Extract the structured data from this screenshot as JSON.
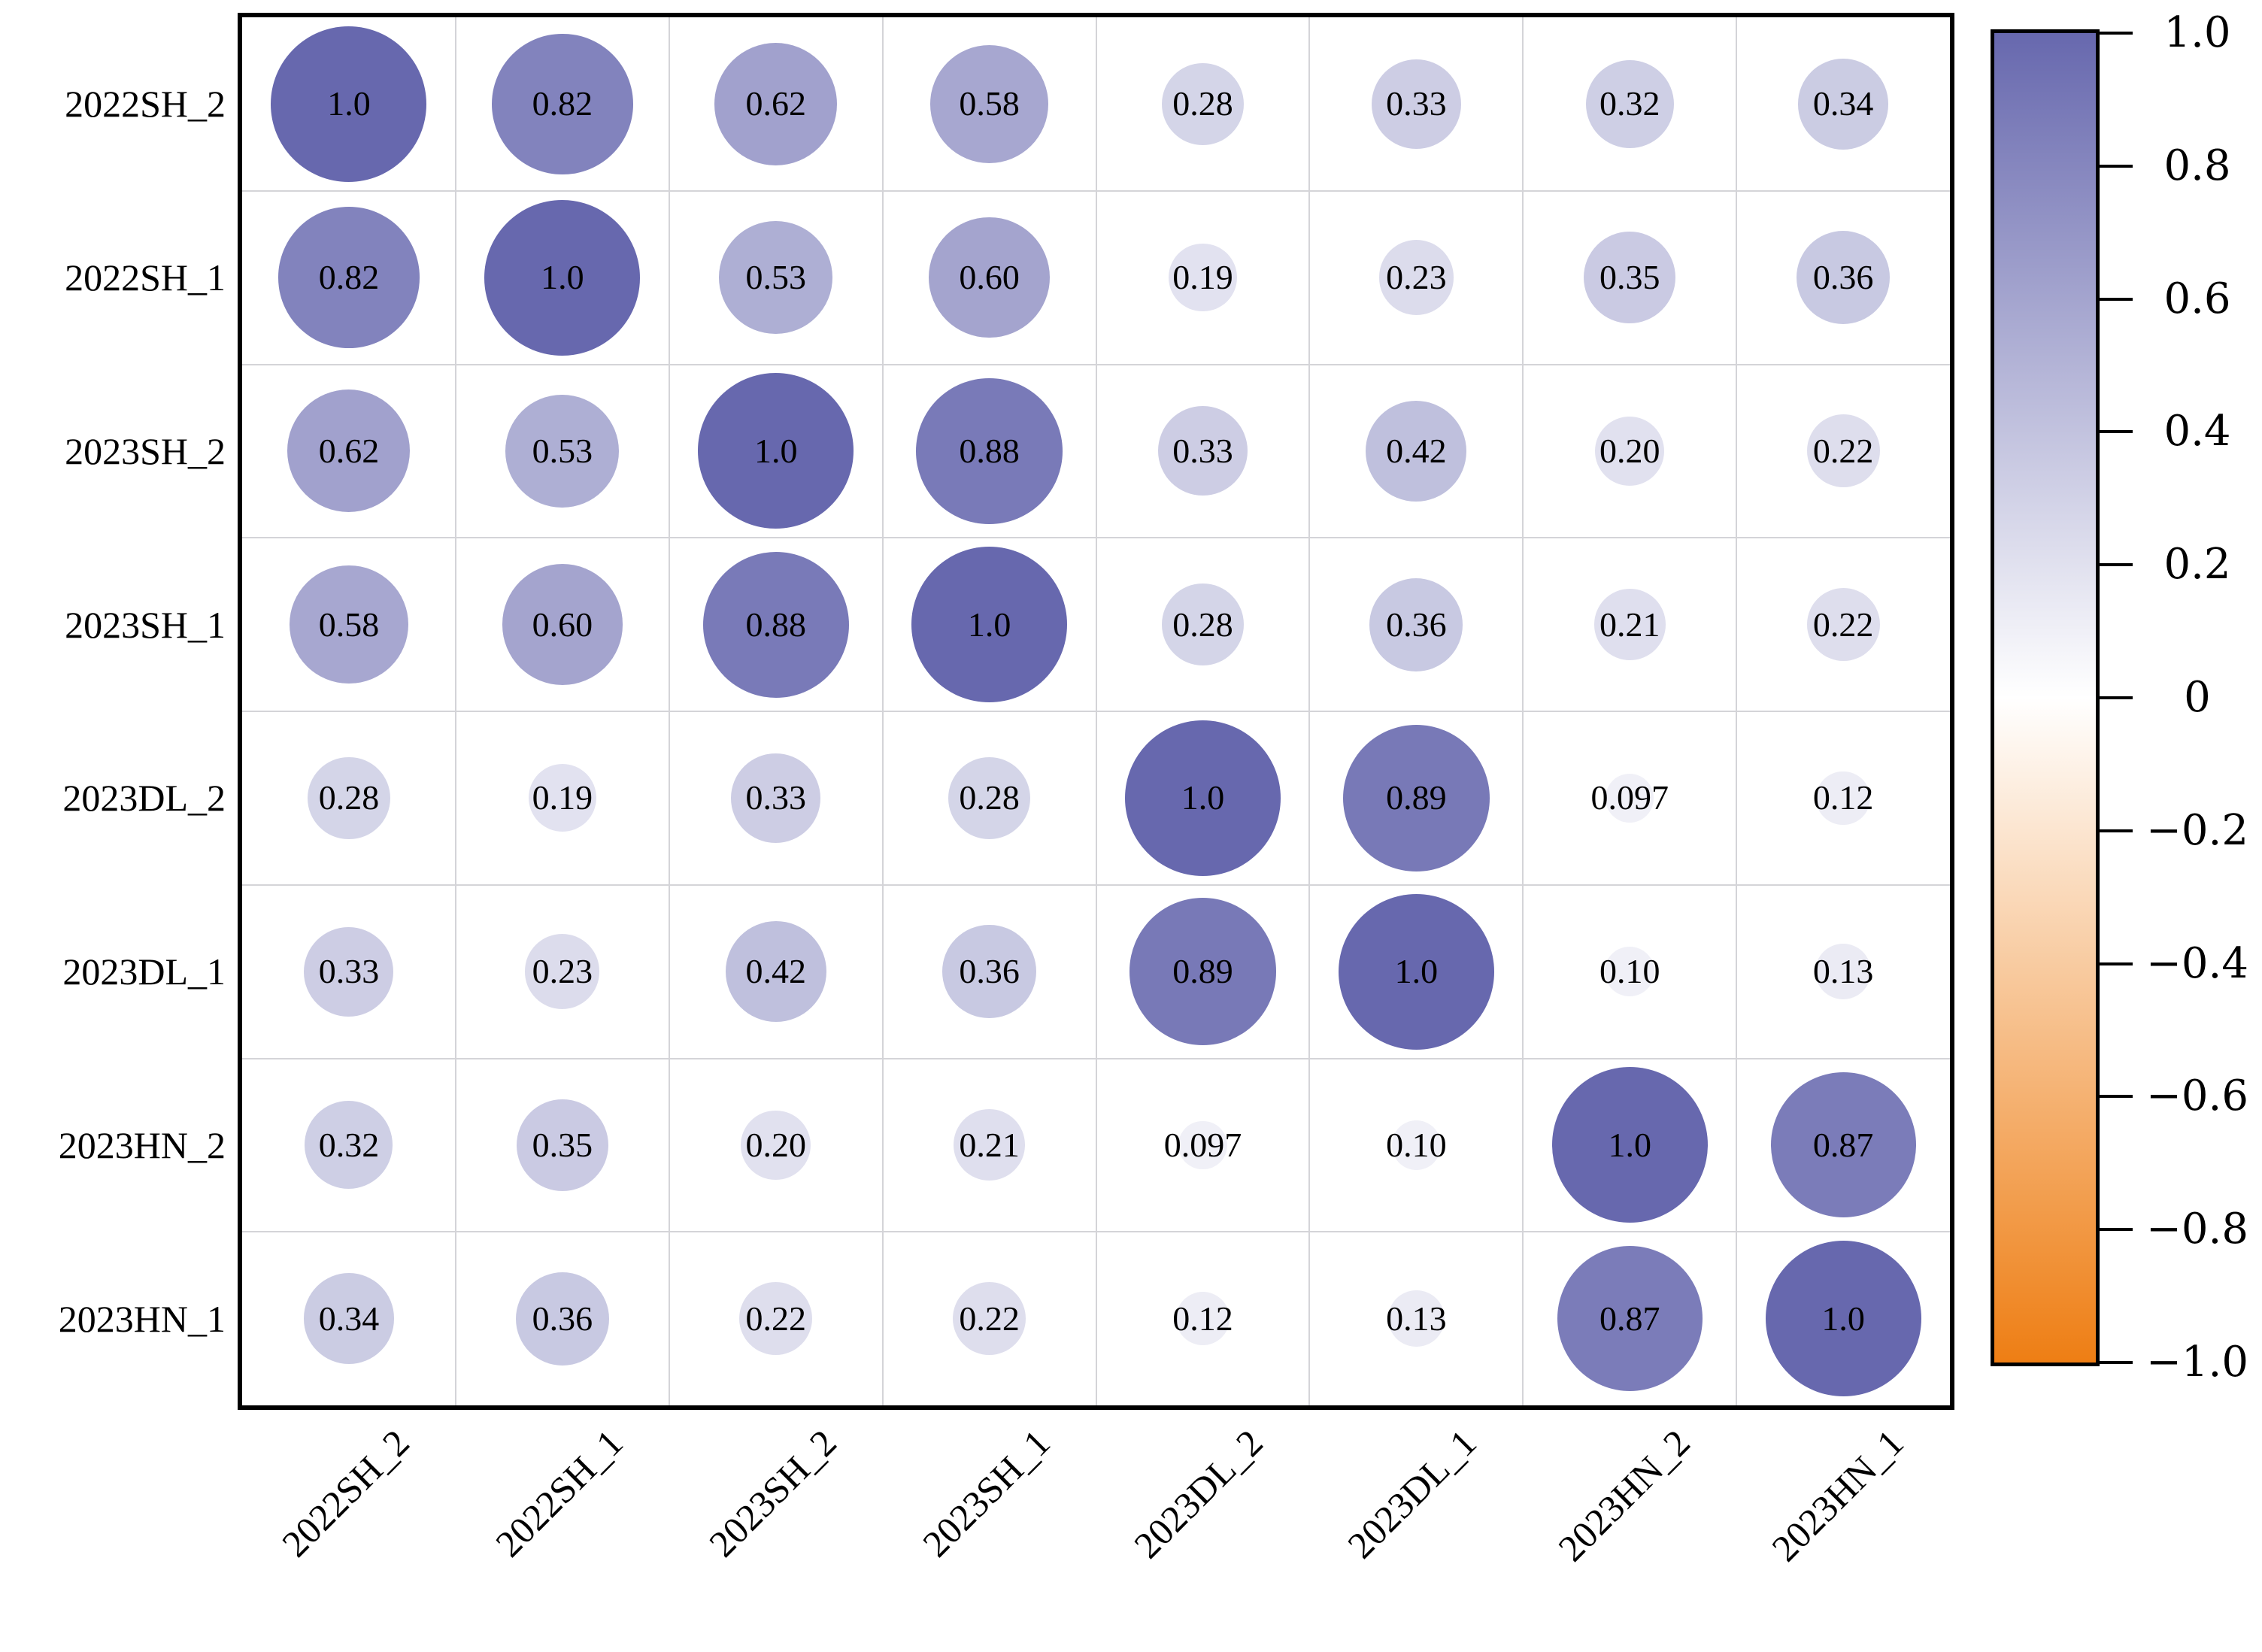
{
  "chart_data": {
    "type": "heatmap",
    "subtype": "correlation-bubble-matrix",
    "title": "",
    "categories": [
      "2022SH_2",
      "2022SH_1",
      "2023SH_2",
      "2023SH_1",
      "2023DL_2",
      "2023DL_1",
      "2023HN_2",
      "2023HN_1"
    ],
    "row_labels": [
      "2022SH_2",
      "2022SH_1",
      "2023SH_2",
      "2023SH_1",
      "2023DL_2",
      "2023DL_1",
      "2023HN_2",
      "2023HN_1"
    ],
    "col_labels": [
      "2022SH_2",
      "2022SH_1",
      "2023SH_2",
      "2023SH_1",
      "2023DL_2",
      "2023DL_1",
      "2023HN_2",
      "2023HN_1"
    ],
    "matrix": [
      [
        1.0,
        0.82,
        0.62,
        0.58,
        0.28,
        0.33,
        0.32,
        0.34
      ],
      [
        0.82,
        1.0,
        0.53,
        0.6,
        0.19,
        0.23,
        0.35,
        0.36
      ],
      [
        0.62,
        0.53,
        1.0,
        0.88,
        0.33,
        0.42,
        0.2,
        0.22
      ],
      [
        0.58,
        0.6,
        0.88,
        1.0,
        0.28,
        0.36,
        0.21,
        0.22
      ],
      [
        0.28,
        0.19,
        0.33,
        0.28,
        1.0,
        0.89,
        0.097,
        0.12
      ],
      [
        0.33,
        0.23,
        0.42,
        0.36,
        0.89,
        1.0,
        0.1,
        0.13
      ],
      [
        0.32,
        0.35,
        0.2,
        0.21,
        0.097,
        0.1,
        1.0,
        0.87
      ],
      [
        0.34,
        0.36,
        0.22,
        0.22,
        0.12,
        0.13,
        0.87,
        1.0
      ]
    ],
    "value_labels": [
      [
        "1.0",
        "0.82",
        "0.62",
        "0.58",
        "0.28",
        "0.33",
        "0.32",
        "0.34"
      ],
      [
        "0.82",
        "1.0",
        "0.53",
        "0.60",
        "0.19",
        "0.23",
        "0.35",
        "0.36"
      ],
      [
        "0.62",
        "0.53",
        "1.0",
        "0.88",
        "0.33",
        "0.42",
        "0.20",
        "0.22"
      ],
      [
        "0.58",
        "0.60",
        "0.88",
        "1.0",
        "0.28",
        "0.36",
        "0.21",
        "0.22"
      ],
      [
        "0.28",
        "0.19",
        "0.33",
        "0.28",
        "1.0",
        "0.89",
        "0.097",
        "0.12"
      ],
      [
        "0.33",
        "0.23",
        "0.42",
        "0.36",
        "0.89",
        "1.0",
        "0.10",
        "0.13"
      ],
      [
        "0.32",
        "0.35",
        "0.20",
        "0.21",
        "0.097",
        "0.10",
        "1.0",
        "0.87"
      ],
      [
        "0.34",
        "0.36",
        "0.22",
        "0.22",
        "0.12",
        "0.13",
        "0.87",
        "1.0"
      ]
    ],
    "bubble_scaling": "area proportional to |r|",
    "grid": true,
    "colors": {
      "positive_extreme": "#6768AE",
      "zero": "#FFFFFF",
      "negative_extreme": "#EE7E14",
      "gridline": "#D4D4D8",
      "border": "#000000",
      "text": "#000000"
    },
    "colorbar": {
      "position": "right",
      "min": -1.0,
      "max": 1.0,
      "tick_labels": [
        "1.0",
        "0.8",
        "0.6",
        "0.4",
        "0.2",
        "0",
        "−0.2",
        "−0.4",
        "−0.6",
        "−0.8",
        "−1.0"
      ],
      "tick_values": [
        1.0,
        0.8,
        0.6,
        0.4,
        0.2,
        0.0,
        -0.2,
        -0.4,
        -0.6,
        -0.8,
        -1.0
      ]
    }
  }
}
